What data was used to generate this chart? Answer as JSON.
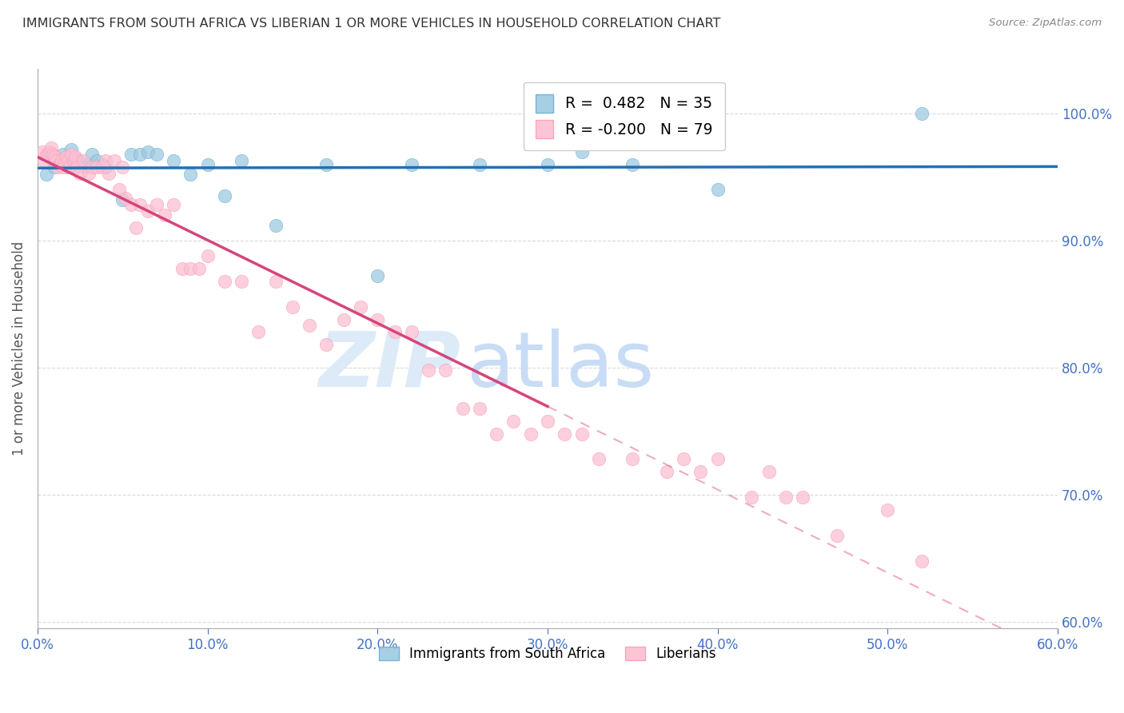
{
  "title": "IMMIGRANTS FROM SOUTH AFRICA VS LIBERIAN 1 OR MORE VEHICLES IN HOUSEHOLD CORRELATION CHART",
  "source": "Source: ZipAtlas.com",
  "ylabel": "1 or more Vehicles in Household",
  "xlim": [
    0.0,
    0.6
  ],
  "ylim": [
    0.595,
    1.035
  ],
  "yticks": [
    0.6,
    0.7,
    0.8,
    0.9,
    1.0
  ],
  "ytick_labels": [
    "60.0%",
    "70.0%",
    "80.0%",
    "90.0%",
    "100.0%"
  ],
  "xticks": [
    0.0,
    0.1,
    0.2,
    0.3,
    0.4,
    0.5,
    0.6
  ],
  "xtick_labels": [
    "0.0%",
    "10.0%",
    "20.0%",
    "30.0%",
    "40.0%",
    "50.0%",
    "60.0%"
  ],
  "legend_label1": "Immigrants from South Africa",
  "legend_label2": "Liberians",
  "R1": 0.482,
  "N1": 35,
  "R2": -0.2,
  "N2": 79,
  "blue_color": "#9ecae1",
  "pink_color": "#fcbfd2",
  "blue_edge": "#6baed6",
  "pink_edge": "#fa9fb5",
  "blue_line_color": "#2171b5",
  "pink_line_color": "#d6457a",
  "axis_color": "#4472c4",
  "grid_color": "#d0d0d0",
  "title_color": "#333333",
  "blue_dots_x": [
    0.005,
    0.008,
    0.01,
    0.012,
    0.015,
    0.018,
    0.02,
    0.022,
    0.025,
    0.028,
    0.03,
    0.032,
    0.035,
    0.038,
    0.04,
    0.05,
    0.055,
    0.06,
    0.065,
    0.07,
    0.08,
    0.09,
    0.1,
    0.11,
    0.12,
    0.14,
    0.17,
    0.2,
    0.22,
    0.26,
    0.3,
    0.32,
    0.35,
    0.4,
    0.52
  ],
  "blue_dots_y": [
    0.952,
    0.968,
    0.958,
    0.963,
    0.968,
    0.958,
    0.972,
    0.965,
    0.962,
    0.958,
    0.96,
    0.968,
    0.963,
    0.96,
    0.958,
    0.932,
    0.968,
    0.968,
    0.97,
    0.968,
    0.963,
    0.952,
    0.96,
    0.935,
    0.963,
    0.912,
    0.96,
    0.872,
    0.96,
    0.96,
    0.96,
    0.97,
    0.96,
    0.94,
    1.0
  ],
  "pink_dots_x": [
    0.003,
    0.004,
    0.005,
    0.006,
    0.007,
    0.008,
    0.009,
    0.01,
    0.011,
    0.012,
    0.013,
    0.014,
    0.015,
    0.016,
    0.017,
    0.018,
    0.019,
    0.02,
    0.021,
    0.022,
    0.023,
    0.025,
    0.027,
    0.03,
    0.032,
    0.035,
    0.038,
    0.04,
    0.042,
    0.045,
    0.048,
    0.05,
    0.052,
    0.055,
    0.058,
    0.06,
    0.065,
    0.07,
    0.075,
    0.08,
    0.085,
    0.09,
    0.095,
    0.1,
    0.11,
    0.12,
    0.13,
    0.14,
    0.15,
    0.16,
    0.17,
    0.18,
    0.19,
    0.2,
    0.21,
    0.22,
    0.23,
    0.24,
    0.25,
    0.26,
    0.27,
    0.28,
    0.29,
    0.3,
    0.31,
    0.32,
    0.33,
    0.35,
    0.37,
    0.38,
    0.39,
    0.4,
    0.42,
    0.43,
    0.44,
    0.45,
    0.47,
    0.5,
    0.52
  ],
  "pink_dots_y": [
    0.97,
    0.963,
    0.968,
    0.968,
    0.97,
    0.973,
    0.968,
    0.966,
    0.963,
    0.958,
    0.96,
    0.963,
    0.958,
    0.963,
    0.966,
    0.963,
    0.958,
    0.968,
    0.963,
    0.966,
    0.958,
    0.953,
    0.963,
    0.953,
    0.958,
    0.958,
    0.958,
    0.963,
    0.953,
    0.963,
    0.94,
    0.958,
    0.933,
    0.928,
    0.91,
    0.928,
    0.923,
    0.928,
    0.92,
    0.928,
    0.878,
    0.878,
    0.878,
    0.888,
    0.868,
    0.868,
    0.828,
    0.868,
    0.848,
    0.833,
    0.818,
    0.838,
    0.848,
    0.838,
    0.828,
    0.828,
    0.798,
    0.798,
    0.768,
    0.768,
    0.748,
    0.758,
    0.748,
    0.758,
    0.748,
    0.748,
    0.728,
    0.728,
    0.718,
    0.728,
    0.718,
    0.728,
    0.698,
    0.718,
    0.698,
    0.698,
    0.668,
    0.688,
    0.648
  ]
}
